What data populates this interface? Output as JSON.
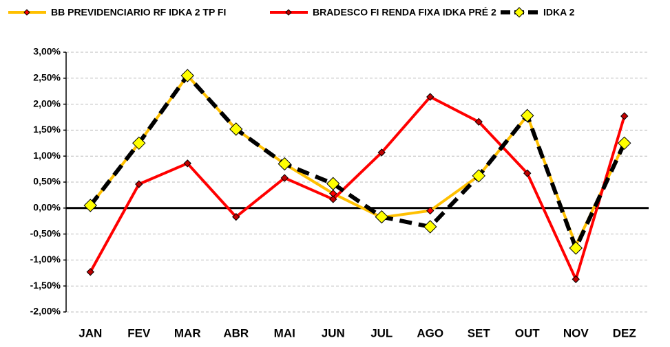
{
  "chart_data": {
    "type": "line",
    "categories": [
      "JAN",
      "FEV",
      "MAR",
      "ABR",
      "MAI",
      "JUN",
      "JUL",
      "AGO",
      "SET",
      "OUT",
      "NOV",
      "DEZ"
    ],
    "series": [
      {
        "name": "BB PREVIDENCIARIO RF IDKA 2 TP FI",
        "color": "#FFC000",
        "marker_color": "#FF0000",
        "dashed": false,
        "values": [
          0.05,
          1.25,
          2.55,
          1.52,
          0.85,
          0.28,
          -0.18,
          -0.05,
          0.62,
          1.78,
          -0.72,
          1.25
        ]
      },
      {
        "name": "BRADESCO FI RENDA FIXA IDKA PRÉ 2",
        "color": "#FF0000",
        "marker_color": "#C00000",
        "dashed": false,
        "values": [
          -1.23,
          0.46,
          0.86,
          -0.17,
          0.58,
          0.17,
          1.07,
          2.14,
          1.66,
          0.67,
          -1.37,
          1.77
        ]
      },
      {
        "name": "IDKA 2",
        "color": "#000000",
        "marker_color": "#FFFF00",
        "dashed": true,
        "values": [
          0.05,
          1.25,
          2.55,
          1.52,
          0.85,
          0.47,
          -0.17,
          -0.36,
          0.62,
          1.78,
          -0.77,
          1.25
        ]
      }
    ],
    "ylim": [
      -2,
      3
    ],
    "yticks": [
      {
        "value": -2,
        "label": "-2,00%"
      },
      {
        "value": -1.5,
        "label": "-1,50%"
      },
      {
        "value": -1,
        "label": "-1,00%"
      },
      {
        "value": -0.5,
        "label": "-0,50%"
      },
      {
        "value": 0,
        "label": "0,00%"
      },
      {
        "value": 0.5,
        "label": "0,50%"
      },
      {
        "value": 1,
        "label": "1,00%"
      },
      {
        "value": 1.5,
        "label": "1,50%"
      },
      {
        "value": 2,
        "label": "2,00%"
      },
      {
        "value": 2.5,
        "label": "2,50%"
      },
      {
        "value": 3,
        "label": "3,00%"
      }
    ],
    "grid": true
  }
}
